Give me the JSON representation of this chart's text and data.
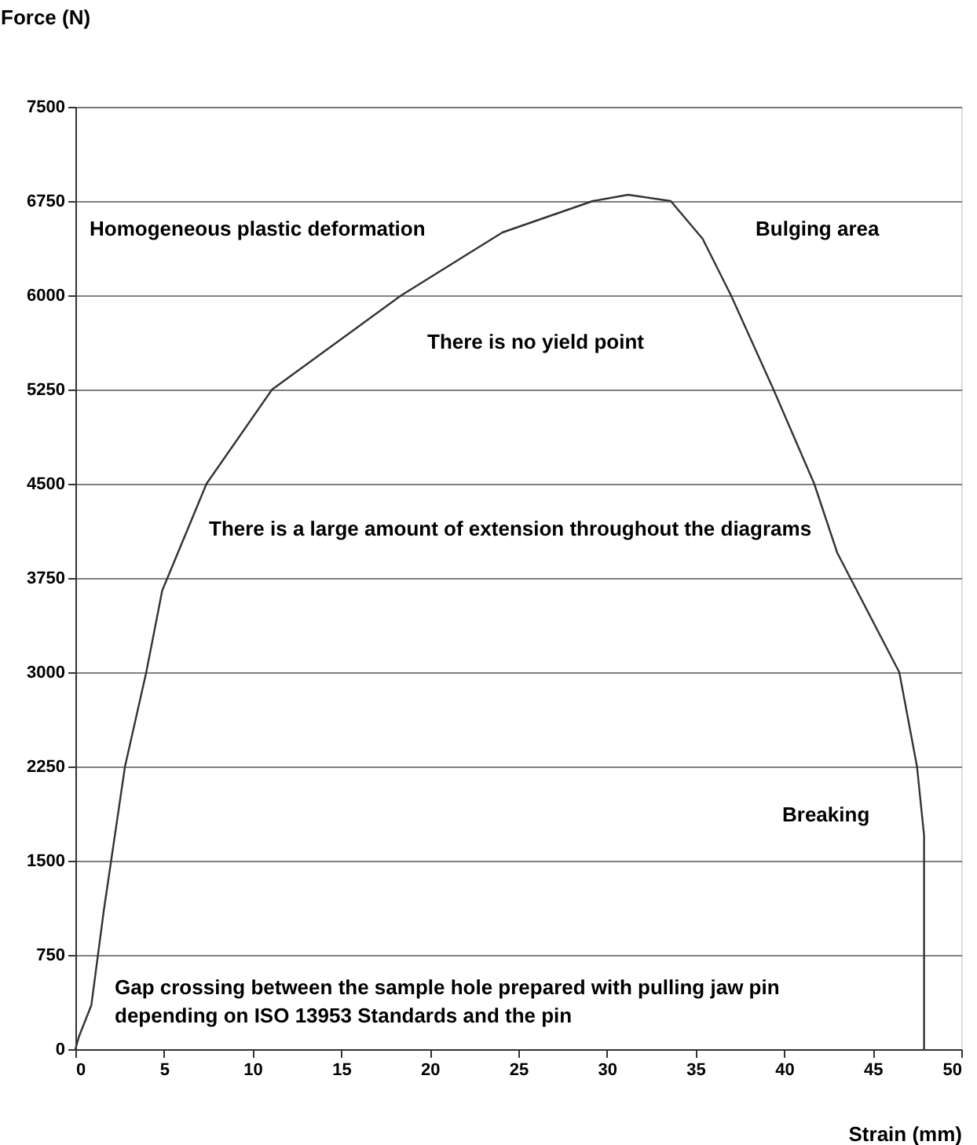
{
  "chart_data": {
    "type": "line",
    "xlabel": "Strain (mm)",
    "ylabel": "Force (N)",
    "xlim": [
      0,
      50
    ],
    "xticks": [
      0,
      5,
      10,
      15,
      20,
      25,
      30,
      35,
      40,
      45,
      50
    ],
    "ylim": [
      0,
      7500
    ],
    "yticks": [
      0,
      750,
      1500,
      2250,
      3000,
      3750,
      4500,
      5250,
      6000,
      6750,
      7500
    ],
    "grid": "y",
    "line_style": "solid",
    "series": [
      {
        "color": "#333333",
        "x": [
          0,
          0.2,
          0.9,
          1.6,
          2.8,
          4.0,
          4.9,
          7.4,
          11.1,
          18.4,
          24.1,
          29.2,
          31.2,
          33.6,
          35.4,
          37.0,
          39.4,
          41.7,
          43.0,
          46.5,
          47.5,
          47.9,
          47.9
        ],
        "values": [
          0,
          100,
          350,
          1100,
          2250,
          3000,
          3650,
          4500,
          5250,
          6000,
          6500,
          6750,
          6800,
          6750,
          6450,
          6000,
          5250,
          4500,
          3950,
          3000,
          2250,
          1700,
          0
        ]
      }
    ],
    "annotations": [
      "Homogeneous plastic deformation",
      "Bulging area",
      "There is no yield point",
      "There is a large amount of extension throughout the diagrams",
      "Breaking",
      "Gap crossing between the sample hole prepared with pulling jaw pin\ndepending on ISO 13953 Standards and the pin"
    ]
  }
}
